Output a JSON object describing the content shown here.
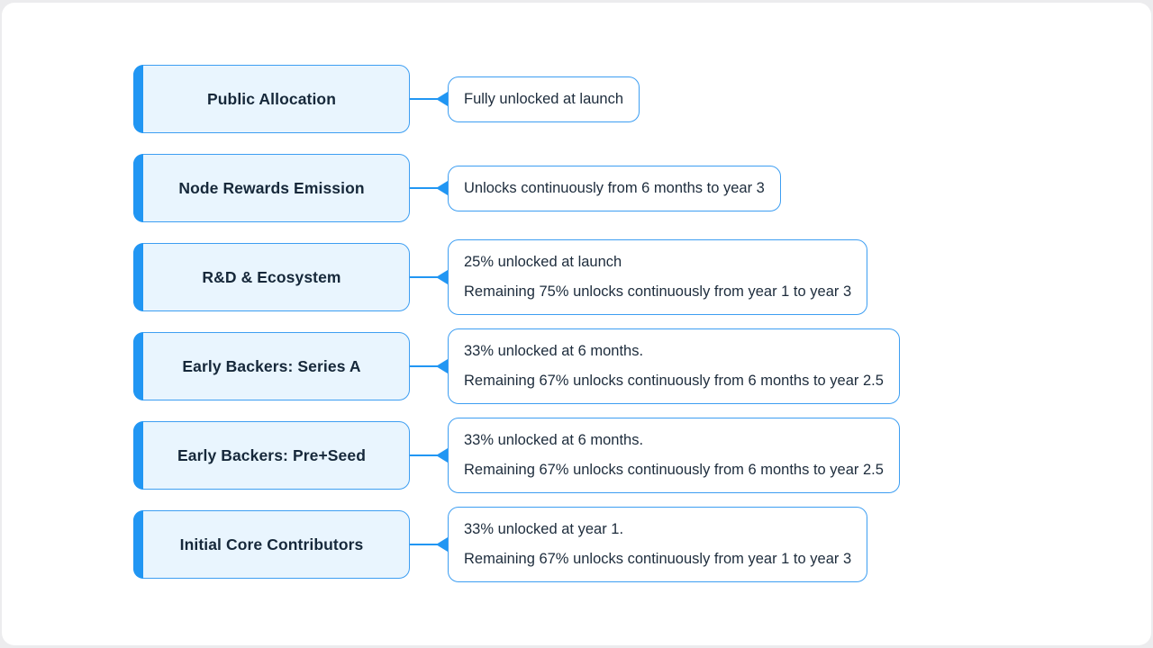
{
  "diagram_title": "token-unlock-schedule",
  "colors": {
    "accent_blue": "#2196f3",
    "node_border": "#3d9ef2",
    "category_fill": "#e9f5fe",
    "description_fill": "#ffffff",
    "text": "#1d2c3c",
    "page_margin": "#ececee"
  },
  "rows": [
    {
      "label": "Public Allocation",
      "lines": [
        "Fully unlocked at launch"
      ]
    },
    {
      "label": "Node Rewards Emission",
      "lines": [
        "Unlocks continuously from 6 months to year 3"
      ]
    },
    {
      "label": "R&D & Ecosystem",
      "lines": [
        "25% unlocked at launch",
        "Remaining 75% unlocks continuously from year 1 to year 3"
      ]
    },
    {
      "label": "Early Backers: Series A",
      "lines": [
        "33% unlocked at 6 months.",
        "Remaining 67% unlocks continuously from 6 months to year 2.5"
      ]
    },
    {
      "label": "Early Backers: Pre+Seed",
      "lines": [
        "33% unlocked at 6 months.",
        "Remaining 67% unlocks continuously from 6 months to year 2.5"
      ]
    },
    {
      "label": "Initial Core Contributors",
      "lines": [
        "33% unlocked at year 1.",
        "Remaining 67% unlocks continuously from year 1 to year 3"
      ]
    }
  ]
}
